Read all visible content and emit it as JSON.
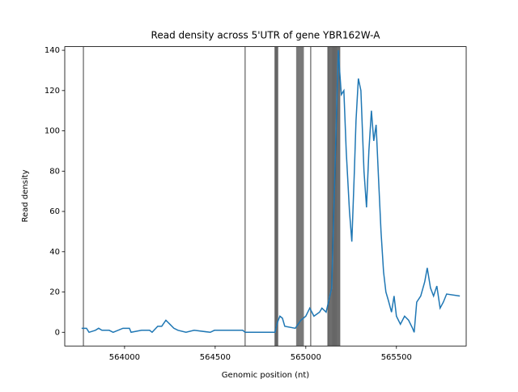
{
  "chart_data": {
    "type": "line",
    "title": "Read density across 5'UTR of gene YBR162W-A",
    "x_label": "Genomic position (nt)",
    "y_label": "Read density",
    "x": [
      563763,
      563790,
      563804,
      563839,
      563857,
      563875,
      563915,
      563937,
      563991,
      564027,
      564036,
      564094,
      564138,
      564152,
      564183,
      564205,
      564228,
      564250,
      564272,
      564295,
      564339,
      564384,
      564473,
      564496,
      564652,
      564665,
      564830,
      564844,
      564857,
      564871,
      564884,
      564942,
      564973,
      565000,
      565022,
      565045,
      565076,
      565089,
      565112,
      565143,
      565179,
      565196,
      565210,
      565223,
      565241,
      565254,
      565268,
      565277,
      565290,
      565304,
      565321,
      565335,
      565348,
      565362,
      565375,
      565388,
      565402,
      565415,
      565429,
      565442,
      565455,
      565473,
      565487,
      565500,
      565522,
      565545,
      565567,
      565589,
      565598,
      565612,
      565634,
      565656,
      565670,
      565688,
      565705,
      565723,
      565741,
      565759,
      565777,
      565850
    ],
    "series": [
      {
        "color": "#1f77b4",
        "values": [
          2,
          2,
          0,
          1,
          2,
          1,
          1,
          0,
          2,
          2,
          0,
          1,
          1,
          0,
          3,
          3,
          6,
          4,
          2,
          1,
          0,
          1,
          0,
          1,
          1,
          0,
          0,
          5,
          8,
          7,
          3,
          2,
          6,
          8,
          12,
          8,
          10,
          12,
          10,
          22,
          140,
          118,
          120,
          90,
          60,
          45,
          80,
          105,
          126,
          120,
          80,
          62,
          90,
          110,
          95,
          103,
          75,
          50,
          30,
          20,
          16,
          10,
          18,
          8,
          4,
          8,
          6,
          2,
          0,
          15,
          18,
          25,
          32,
          22,
          18,
          23,
          12,
          15,
          19,
          18
        ]
      }
    ],
    "vlines": [
      563773,
      564665,
      564830,
      564835,
      564840,
      564845,
      564950,
      564956,
      564962,
      564968,
      564974,
      564980,
      564986,
      565027,
      565122,
      565127,
      565132,
      565137,
      565142,
      565147,
      565152,
      565157,
      565162,
      565167,
      565172,
      565177,
      565182,
      565187
    ],
    "vline_color": "#000000",
    "xlim": [
      563670,
      565885
    ],
    "ylim": [
      -6.8,
      141.8
    ],
    "xticks": [
      564000,
      564500,
      565000,
      565500
    ],
    "yticks": [
      0,
      20,
      40,
      60,
      80,
      100,
      120,
      140
    ]
  }
}
